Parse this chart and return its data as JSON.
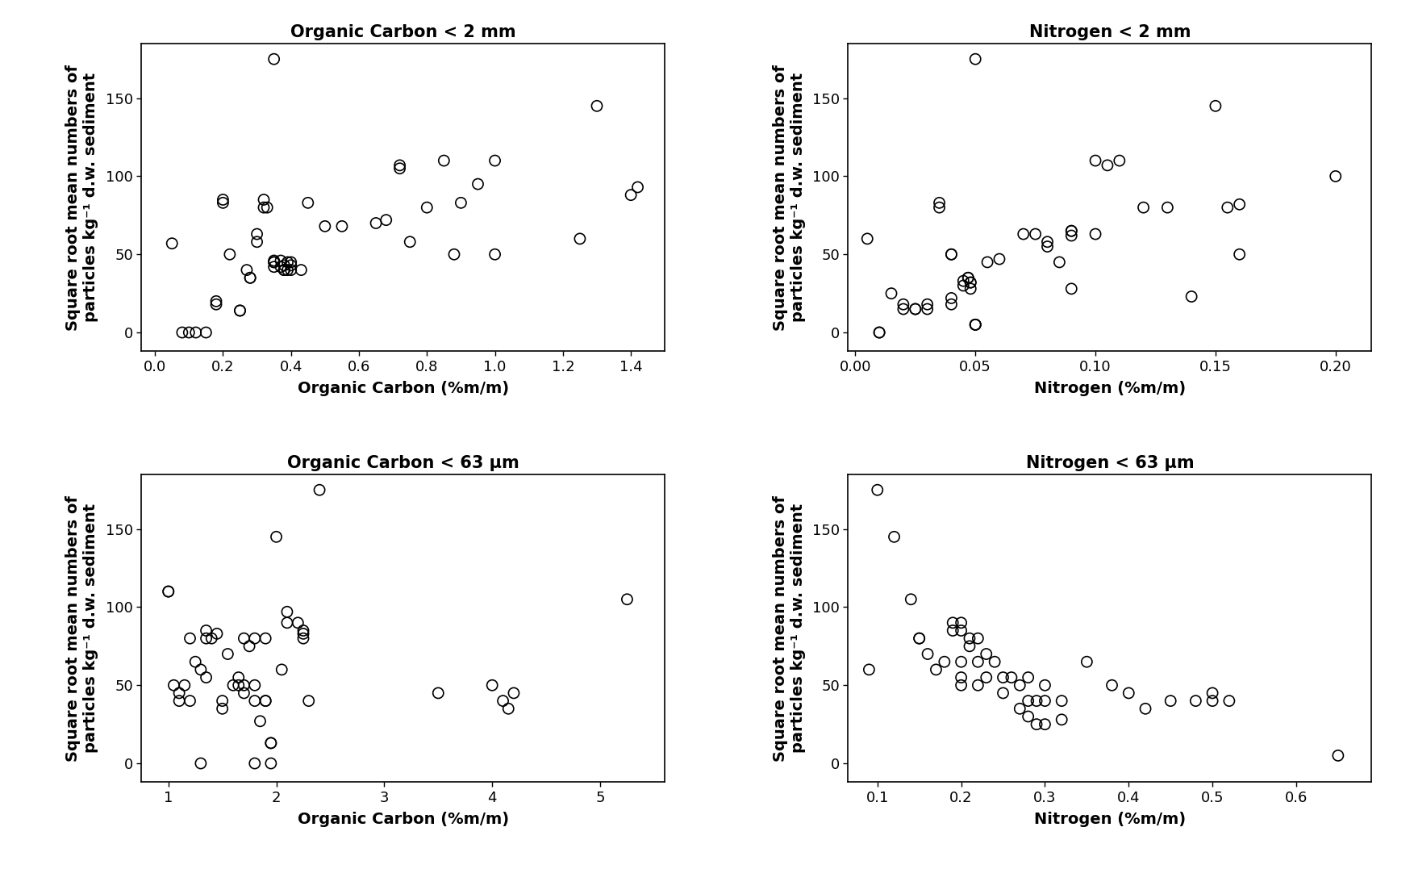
{
  "plot1": {
    "title": "Organic Carbon < 2 mm",
    "xlabel": "Organic Carbon (%m/m)",
    "ylabel_line1": "Square root mean numbers of",
    "ylabel_line2": "particles kg⁻¹ d.w. sediment",
    "xlim": [
      -0.04,
      1.5
    ],
    "ylim": [
      -12,
      185
    ],
    "xticks": [
      0.0,
      0.2,
      0.4,
      0.6,
      0.8,
      1.0,
      1.2,
      1.4
    ],
    "yticks": [
      0,
      50,
      100,
      150
    ],
    "x": [
      0.05,
      0.08,
      0.1,
      0.12,
      0.15,
      0.18,
      0.18,
      0.2,
      0.2,
      0.22,
      0.25,
      0.25,
      0.27,
      0.28,
      0.28,
      0.3,
      0.3,
      0.32,
      0.32,
      0.33,
      0.35,
      0.35,
      0.35,
      0.35,
      0.37,
      0.37,
      0.38,
      0.38,
      0.38,
      0.38,
      0.39,
      0.39,
      0.4,
      0.4,
      0.4,
      0.35,
      0.43,
      0.45,
      0.5,
      0.55,
      0.65,
      0.68,
      0.72,
      0.72,
      0.75,
      0.8,
      0.85,
      0.88,
      0.9,
      0.95,
      1.0,
      1.0,
      1.25,
      1.3,
      1.4,
      1.42
    ],
    "y": [
      57,
      0,
      0,
      0,
      0,
      20,
      18,
      83,
      85,
      50,
      14,
      14,
      40,
      35,
      35,
      63,
      58,
      80,
      85,
      80,
      45,
      45,
      46,
      42,
      46,
      42,
      40,
      40,
      40,
      43,
      40,
      45,
      40,
      43,
      45,
      175,
      40,
      83,
      68,
      68,
      70,
      72,
      105,
      107,
      58,
      80,
      110,
      50,
      83,
      95,
      110,
      50,
      60,
      145,
      88,
      93
    ]
  },
  "plot2": {
    "title": "Nitrogen < 2 mm",
    "xlabel": "Nitrogen (%m/m)",
    "ylabel_line1": "Square root mean numbers of",
    "ylabel_line2": "particles kg⁻¹ d.w. sediment",
    "xlim": [
      -0.003,
      0.215
    ],
    "ylim": [
      -12,
      185
    ],
    "xticks": [
      0.0,
      0.05,
      0.1,
      0.15,
      0.2
    ],
    "yticks": [
      0,
      50,
      100,
      150
    ],
    "x": [
      0.005,
      0.01,
      0.01,
      0.015,
      0.02,
      0.02,
      0.025,
      0.025,
      0.03,
      0.03,
      0.035,
      0.035,
      0.04,
      0.04,
      0.04,
      0.04,
      0.045,
      0.045,
      0.047,
      0.047,
      0.048,
      0.048,
      0.048,
      0.05,
      0.05,
      0.05,
      0.05,
      0.055,
      0.06,
      0.07,
      0.075,
      0.08,
      0.08,
      0.085,
      0.09,
      0.09,
      0.09,
      0.09,
      0.1,
      0.1,
      0.105,
      0.11,
      0.12,
      0.13,
      0.14,
      0.15,
      0.155,
      0.16,
      0.16,
      0.2
    ],
    "y": [
      60,
      0,
      0,
      25,
      18,
      15,
      15,
      15,
      18,
      15,
      80,
      83,
      50,
      50,
      22,
      18,
      33,
      30,
      35,
      35,
      32,
      32,
      28,
      175,
      5,
      5,
      5,
      45,
      47,
      63,
      63,
      58,
      55,
      45,
      65,
      65,
      62,
      28,
      63,
      110,
      107,
      110,
      80,
      80,
      23,
      145,
      80,
      82,
      50,
      100
    ]
  },
  "plot3": {
    "title": "Organic Carbon < 63 μm",
    "xlabel": "Organic Carbon (%m/m)",
    "ylabel_line1": "Square root mean numbers of",
    "ylabel_line2": "particles kg⁻¹ d.w. sediment",
    "xlim": [
      0.75,
      5.6
    ],
    "ylim": [
      -12,
      185
    ],
    "xticks": [
      1,
      2,
      3,
      4,
      5
    ],
    "yticks": [
      0,
      50,
      100,
      150
    ],
    "x": [
      1.0,
      1.0,
      1.05,
      1.1,
      1.1,
      1.15,
      1.2,
      1.2,
      1.25,
      1.3,
      1.3,
      1.35,
      1.35,
      1.35,
      1.4,
      1.45,
      1.5,
      1.5,
      1.55,
      1.6,
      1.65,
      1.65,
      1.7,
      1.7,
      1.7,
      1.75,
      1.8,
      1.8,
      1.8,
      1.8,
      1.85,
      1.9,
      1.9,
      1.9,
      1.95,
      1.95,
      1.95,
      2.0,
      2.05,
      2.1,
      2.1,
      2.2,
      2.25,
      2.25,
      2.25,
      2.3,
      2.4,
      3.5,
      4.0,
      4.1,
      4.15,
      4.2,
      5.25
    ],
    "y": [
      110,
      110,
      50,
      45,
      40,
      50,
      80,
      40,
      65,
      60,
      0,
      85,
      80,
      55,
      80,
      83,
      40,
      35,
      70,
      50,
      55,
      50,
      50,
      80,
      45,
      75,
      80,
      50,
      40,
      0,
      27,
      80,
      40,
      40,
      13,
      13,
      0,
      145,
      60,
      97,
      90,
      90,
      85,
      83,
      80,
      40,
      175,
      45,
      50,
      40,
      35,
      45,
      105
    ]
  },
  "plot4": {
    "title": "Nitrogen < 63 μm",
    "xlabel": "Nitrogen (%m/m)",
    "ylabel_line1": "Square root mean numbers of",
    "ylabel_line2": "particles kg⁻¹ d.w. sediment",
    "xlim": [
      0.065,
      0.69
    ],
    "ylim": [
      -12,
      185
    ],
    "xticks": [
      0.1,
      0.2,
      0.3,
      0.4,
      0.5,
      0.6
    ],
    "yticks": [
      0,
      50,
      100,
      150
    ],
    "x": [
      0.09,
      0.1,
      0.12,
      0.14,
      0.15,
      0.15,
      0.16,
      0.17,
      0.18,
      0.19,
      0.19,
      0.2,
      0.2,
      0.2,
      0.2,
      0.2,
      0.21,
      0.21,
      0.22,
      0.22,
      0.22,
      0.23,
      0.23,
      0.24,
      0.25,
      0.25,
      0.26,
      0.27,
      0.27,
      0.28,
      0.28,
      0.28,
      0.29,
      0.29,
      0.3,
      0.3,
      0.3,
      0.32,
      0.32,
      0.35,
      0.38,
      0.4,
      0.42,
      0.45,
      0.48,
      0.5,
      0.5,
      0.52,
      0.65
    ],
    "y": [
      60,
      175,
      145,
      105,
      80,
      80,
      70,
      60,
      65,
      90,
      85,
      90,
      85,
      65,
      55,
      50,
      80,
      75,
      80,
      65,
      50,
      70,
      55,
      65,
      55,
      45,
      55,
      50,
      35,
      55,
      40,
      30,
      40,
      25,
      50,
      40,
      25,
      40,
      28,
      65,
      50,
      45,
      35,
      40,
      40,
      40,
      45,
      40,
      5
    ]
  },
  "figure_bg": "#ffffff",
  "marker_size": 6,
  "marker_color": "none",
  "marker_edge_color": "#000000",
  "marker_edge_width": 1.2,
  "title_fontsize": 15,
  "label_fontsize": 14,
  "tick_fontsize": 13,
  "ylabel_fontsize": 14
}
